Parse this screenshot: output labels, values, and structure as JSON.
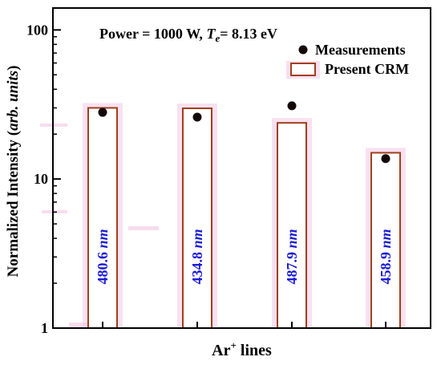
{
  "chart_data": {
    "type": "bar",
    "yscale": "log",
    "ylim": [
      1,
      100
    ],
    "categories": [
      "480.6 nm",
      "434.8 nm",
      "487.9 nm",
      "458.9 nm"
    ],
    "series": [
      {
        "name": "Present CRM",
        "kind": "bar",
        "values": [
          30.0,
          29.8,
          23.8,
          15.0
        ]
      },
      {
        "name": "Measurements",
        "kind": "scatter",
        "values": [
          28.0,
          26.0,
          31.0,
          13.7
        ]
      }
    ],
    "annotation": {
      "prefix": "Power = 1000 W, ",
      "te_symbol": "T",
      "te_sub": "e",
      "te_value": "= 8.13 eV"
    },
    "xlabel": {
      "main": "Ar",
      "sup": "+",
      "rest": " lines"
    },
    "ylabel": {
      "main": "Normalized Intensity (",
      "italic": "arb. units",
      "close": ")"
    },
    "yticks": [
      {
        "value": 1,
        "label": "1"
      },
      {
        "value": 10,
        "label": "10"
      },
      {
        "value": 100,
        "label": "100"
      }
    ],
    "bar_labels": [
      {
        "num": "480.6",
        "unit": "nm"
      },
      {
        "num": "434.8",
        "unit": "nm"
      },
      {
        "num": "487.9",
        "unit": "nm"
      },
      {
        "num": "458.9",
        "unit": "nm"
      }
    ],
    "legend": {
      "position": "top-right"
    },
    "colors": {
      "bar_edge": "#a0401a",
      "bar_fill": "#ffffff",
      "glow": "#f4c4e4",
      "marker": "#140909",
      "label": "#1c1cd4",
      "axis": "#000000"
    }
  }
}
